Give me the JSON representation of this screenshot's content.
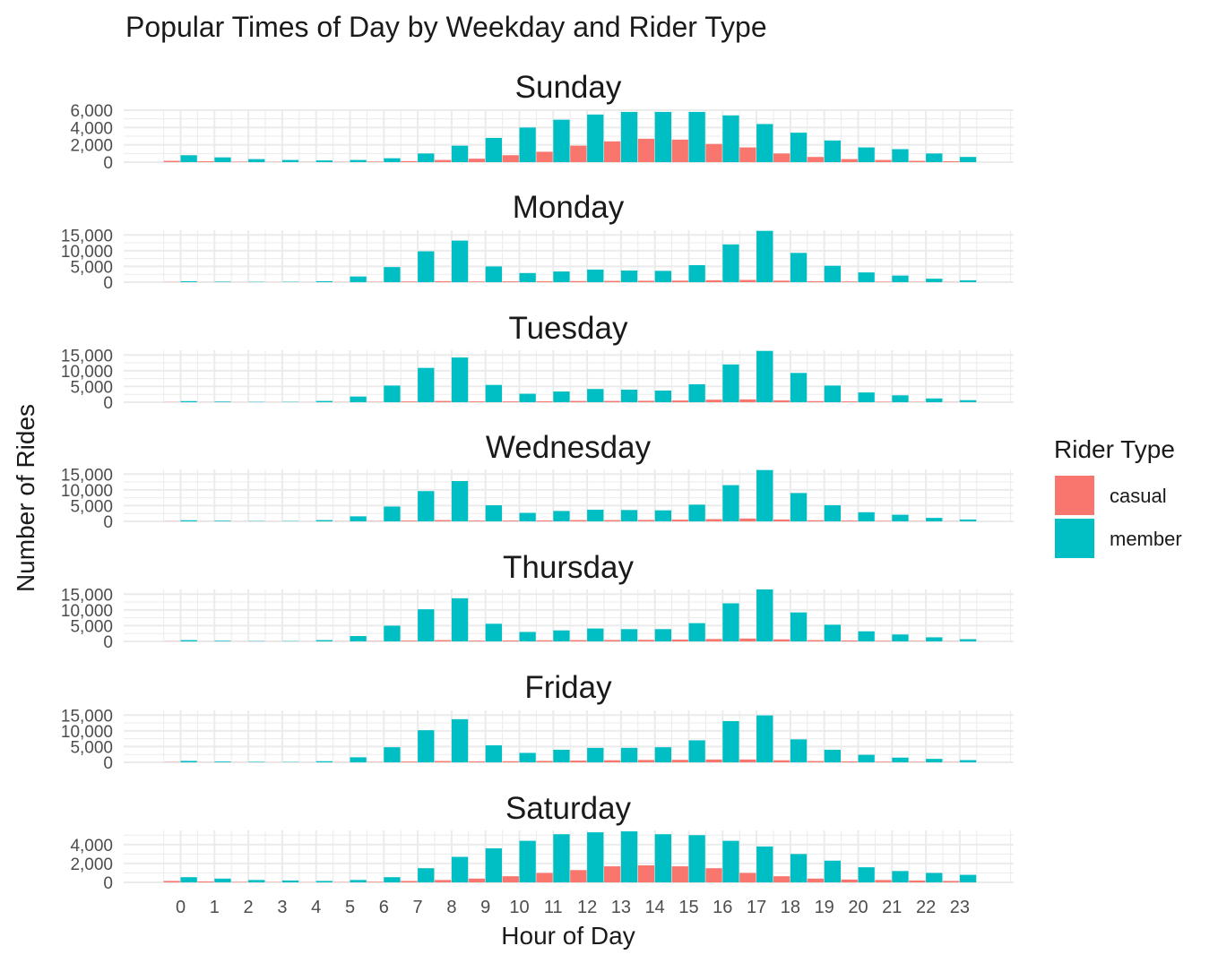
{
  "chart_data": {
    "type": "bar",
    "title": "Popular Times of Day by Weekday and Rider Type",
    "xlabel": "Hour of Day",
    "ylabel": "Number of Rides",
    "legend": {
      "title": "Rider Type",
      "position": "right",
      "items": [
        {
          "name": "casual",
          "color": "#F8766D"
        },
        {
          "name": "member",
          "color": "#00BFC4"
        }
      ]
    },
    "categories": [
      "0",
      "1",
      "2",
      "3",
      "4",
      "5",
      "6",
      "7",
      "8",
      "9",
      "10",
      "11",
      "12",
      "13",
      "14",
      "15",
      "16",
      "17",
      "18",
      "19",
      "20",
      "21",
      "22",
      "23"
    ],
    "grid": true,
    "panels": [
      {
        "name": "Sunday",
        "ylim": [
          0,
          6000
        ],
        "yticks": [
          0,
          2000,
          4000,
          6000
        ],
        "ytick_labels": [
          "0",
          "2,000",
          "4,000",
          "6,000"
        ],
        "series": [
          {
            "name": "casual",
            "values": [
              150,
              100,
              50,
              30,
              20,
              30,
              60,
              120,
              250,
              400,
              800,
              1200,
              1900,
              2400,
              2700,
              2600,
              2100,
              1700,
              1000,
              600,
              350,
              250,
              150,
              100
            ]
          },
          {
            "name": "member",
            "values": [
              800,
              550,
              350,
              250,
              200,
              250,
              450,
              1000,
              1900,
              2800,
              4000,
              4900,
              5500,
              5800,
              5800,
              5800,
              5400,
              4400,
              3400,
              2500,
              1700,
              1500,
              1000,
              600
            ]
          }
        ]
      },
      {
        "name": "Monday",
        "ylim": [
          0,
          16500
        ],
        "yticks": [
          0,
          5000,
          10000,
          15000
        ],
        "ytick_labels": [
          "0",
          "5,000",
          "10,000",
          "15,000"
        ],
        "series": [
          {
            "name": "casual",
            "values": [
              50,
              30,
              20,
              20,
              20,
              50,
              100,
              200,
              300,
              200,
              250,
              300,
              350,
              400,
              450,
              500,
              600,
              700,
              500,
              300,
              200,
              150,
              100,
              60
            ]
          },
          {
            "name": "member",
            "values": [
              300,
              150,
              100,
              100,
              300,
              1800,
              4800,
              9800,
              13200,
              5000,
              2900,
              3400,
              4000,
              3700,
              3600,
              5400,
              12000,
              16300,
              9300,
              5200,
              3100,
              2100,
              1100,
              600
            ]
          }
        ]
      },
      {
        "name": "Tuesday",
        "ylim": [
          0,
          16500
        ],
        "yticks": [
          0,
          5000,
          10000,
          15000
        ],
        "ytick_labels": [
          "0",
          "5,000",
          "10,000",
          "15,000"
        ],
        "series": [
          {
            "name": "casual",
            "values": [
              50,
              30,
              20,
              20,
              20,
              50,
              100,
              250,
              400,
              250,
              250,
              300,
              400,
              400,
              450,
              550,
              800,
              900,
              600,
              350,
              250,
              150,
              100,
              60
            ]
          },
          {
            "name": "member",
            "values": [
              350,
              200,
              100,
              100,
              400,
              1800,
              5300,
              10900,
              14200,
              5500,
              2700,
              3400,
              4200,
              4000,
              3700,
              5700,
              12000,
              16300,
              9300,
              5300,
              3100,
              2200,
              1200,
              650
            ]
          }
        ]
      },
      {
        "name": "Wednesday",
        "ylim": [
          0,
          16500
        ],
        "yticks": [
          0,
          5000,
          10000,
          15000
        ],
        "ytick_labels": [
          "0",
          "5,000",
          "10,000",
          "15,000"
        ],
        "series": [
          {
            "name": "casual",
            "values": [
              50,
              30,
              20,
              20,
              20,
              50,
              100,
              250,
              400,
              250,
              250,
              300,
              400,
              400,
              450,
              550,
              700,
              900,
              600,
              350,
              250,
              150,
              100,
              60
            ]
          },
          {
            "name": "member",
            "values": [
              350,
              200,
              100,
              100,
              400,
              1600,
              4700,
              9600,
              12800,
              5100,
              2700,
              3300,
              3700,
              3600,
              3500,
              5300,
              11500,
              16300,
              9000,
              5100,
              2900,
              2100,
              1100,
              600
            ]
          }
        ]
      },
      {
        "name": "Thursday",
        "ylim": [
          0,
          16500
        ],
        "yticks": [
          0,
          5000,
          10000,
          15000
        ],
        "ytick_labels": [
          "0",
          "5,000",
          "10,000",
          "15,000"
        ],
        "series": [
          {
            "name": "casual",
            "values": [
              50,
              30,
              20,
              20,
              20,
              50,
              100,
              250,
              400,
              250,
              300,
              350,
              400,
              450,
              500,
              600,
              750,
              900,
              650,
              400,
              300,
              200,
              150,
              80
            ]
          },
          {
            "name": "member",
            "values": [
              400,
              200,
              100,
              100,
              400,
              1700,
              5000,
              10200,
              13700,
              5600,
              3000,
              3500,
              4100,
              3900,
              3900,
              5800,
              12100,
              16500,
              9200,
              5300,
              3200,
              2200,
              1300,
              700
            ]
          }
        ]
      },
      {
        "name": "Friday",
        "ylim": [
          0,
          16500
        ],
        "yticks": [
          0,
          5000,
          10000,
          15000
        ],
        "ytick_labels": [
          "0",
          "5,000",
          "10,000",
          "15,000"
        ],
        "series": [
          {
            "name": "casual",
            "values": [
              80,
              40,
              30,
              20,
              20,
              50,
              100,
              250,
              400,
              300,
              350,
              450,
              550,
              650,
              750,
              800,
              900,
              900,
              650,
              400,
              300,
              200,
              150,
              100
            ]
          },
          {
            "name": "member",
            "values": [
              450,
              250,
              150,
              100,
              350,
              1600,
              4800,
              10200,
              13700,
              5400,
              3000,
              4000,
              4600,
              4600,
              4800,
              7000,
              13100,
              14900,
              7300,
              4000,
              2400,
              1500,
              1100,
              700
            ]
          }
        ]
      },
      {
        "name": "Saturday",
        "ylim": [
          0,
          5500
        ],
        "yticks": [
          0,
          2000,
          4000
        ],
        "ytick_labels": [
          "0",
          "2,000",
          "4,000"
        ],
        "series": [
          {
            "name": "casual",
            "values": [
              150,
              100,
              50,
              30,
              20,
              30,
              60,
              150,
              250,
              400,
              650,
              1000,
              1300,
              1700,
              1800,
              1700,
              1500,
              1000,
              650,
              400,
              300,
              250,
              200,
              150
            ]
          },
          {
            "name": "member",
            "values": [
              550,
              400,
              250,
              200,
              150,
              250,
              550,
              1500,
              2700,
              3600,
              4400,
              5100,
              5300,
              5400,
              5100,
              5000,
              4400,
              3800,
              3000,
              2300,
              1600,
              1200,
              1000,
              800
            ]
          }
        ]
      }
    ]
  }
}
